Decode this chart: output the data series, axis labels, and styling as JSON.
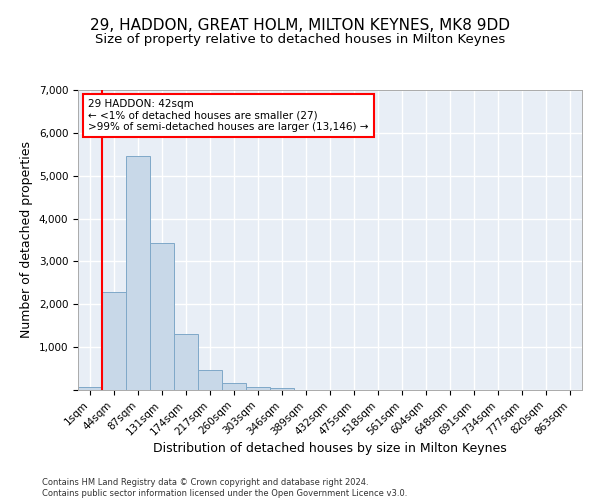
{
  "title_line1": "29, HADDON, GREAT HOLM, MILTON KEYNES, MK8 9DD",
  "title_line2": "Size of property relative to detached houses in Milton Keynes",
  "xlabel": "Distribution of detached houses by size in Milton Keynes",
  "ylabel": "Number of detached properties",
  "bar_color": "#c8d8e8",
  "bar_edge_color": "#7fa8c8",
  "background_color": "#e8eef6",
  "grid_color": "#ffffff",
  "categories": [
    "1sqm",
    "44sqm",
    "87sqm",
    "131sqm",
    "174sqm",
    "217sqm",
    "260sqm",
    "303sqm",
    "346sqm",
    "389sqm",
    "432sqm",
    "475sqm",
    "518sqm",
    "561sqm",
    "604sqm",
    "648sqm",
    "691sqm",
    "734sqm",
    "777sqm",
    "820sqm",
    "863sqm"
  ],
  "values": [
    80,
    2280,
    5450,
    3430,
    1310,
    470,
    155,
    80,
    50,
    0,
    0,
    0,
    0,
    0,
    0,
    0,
    0,
    0,
    0,
    0,
    0
  ],
  "ylim": [
    0,
    7000
  ],
  "yticks": [
    0,
    1000,
    2000,
    3000,
    4000,
    5000,
    6000,
    7000
  ],
  "annotation_text_line1": "29 HADDON: 42sqm",
  "annotation_text_line2": "← <1% of detached houses are smaller (27)",
  "annotation_text_line3": ">99% of semi-detached houses are larger (13,146) →",
  "footer_line1": "Contains HM Land Registry data © Crown copyright and database right 2024.",
  "footer_line2": "Contains public sector information licensed under the Open Government Licence v3.0.",
  "title_fontsize": 11,
  "subtitle_fontsize": 9.5,
  "tick_fontsize": 7.5,
  "ylabel_fontsize": 9,
  "xlabel_fontsize": 9,
  "ann_fontsize": 7.5,
  "footer_fontsize": 6
}
